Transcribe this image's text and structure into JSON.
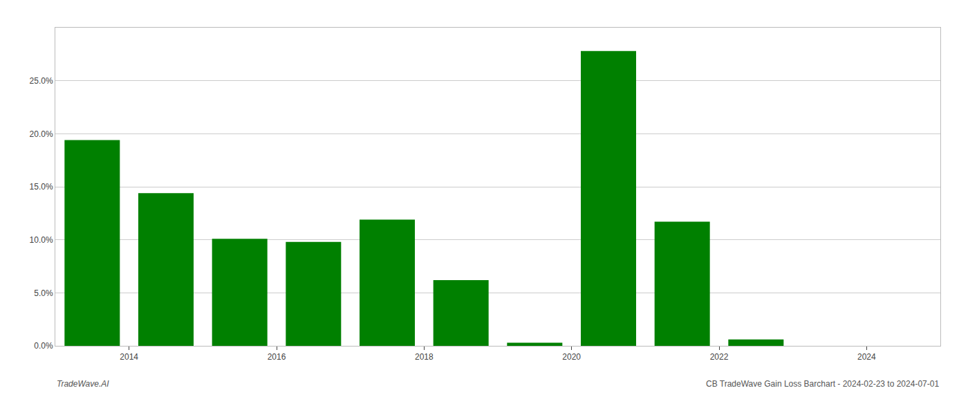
{
  "chart_data": {
    "type": "bar",
    "x": [
      2013.5,
      2014.5,
      2015.5,
      2016.5,
      2017.5,
      2018.5,
      2019.5,
      2020.5,
      2021.5,
      2022.5
    ],
    "values": [
      0.194,
      0.144,
      0.101,
      0.098,
      0.119,
      0.062,
      0.003,
      0.278,
      0.117,
      0.006
    ],
    "color": "#008000",
    "xlim": [
      2013.0,
      2025.0
    ],
    "xticks": [
      2014,
      2016,
      2018,
      2020,
      2022,
      2024
    ],
    "ylim": [
      0,
      0.3
    ],
    "yticks": [
      {
        "value": 0.0,
        "label": "0.0%"
      },
      {
        "value": 0.05,
        "label": "5.0%"
      },
      {
        "value": 0.1,
        "label": "10.0%"
      },
      {
        "value": 0.15,
        "label": "15.0%"
      },
      {
        "value": 0.2,
        "label": "20.0%"
      },
      {
        "value": 0.25,
        "label": "25.0%"
      }
    ],
    "grid": true,
    "annotations": [
      "TradeWave.AI",
      "CB TradeWave Gain Loss Barchart - 2024-02-23 to 2024-07-01"
    ]
  }
}
